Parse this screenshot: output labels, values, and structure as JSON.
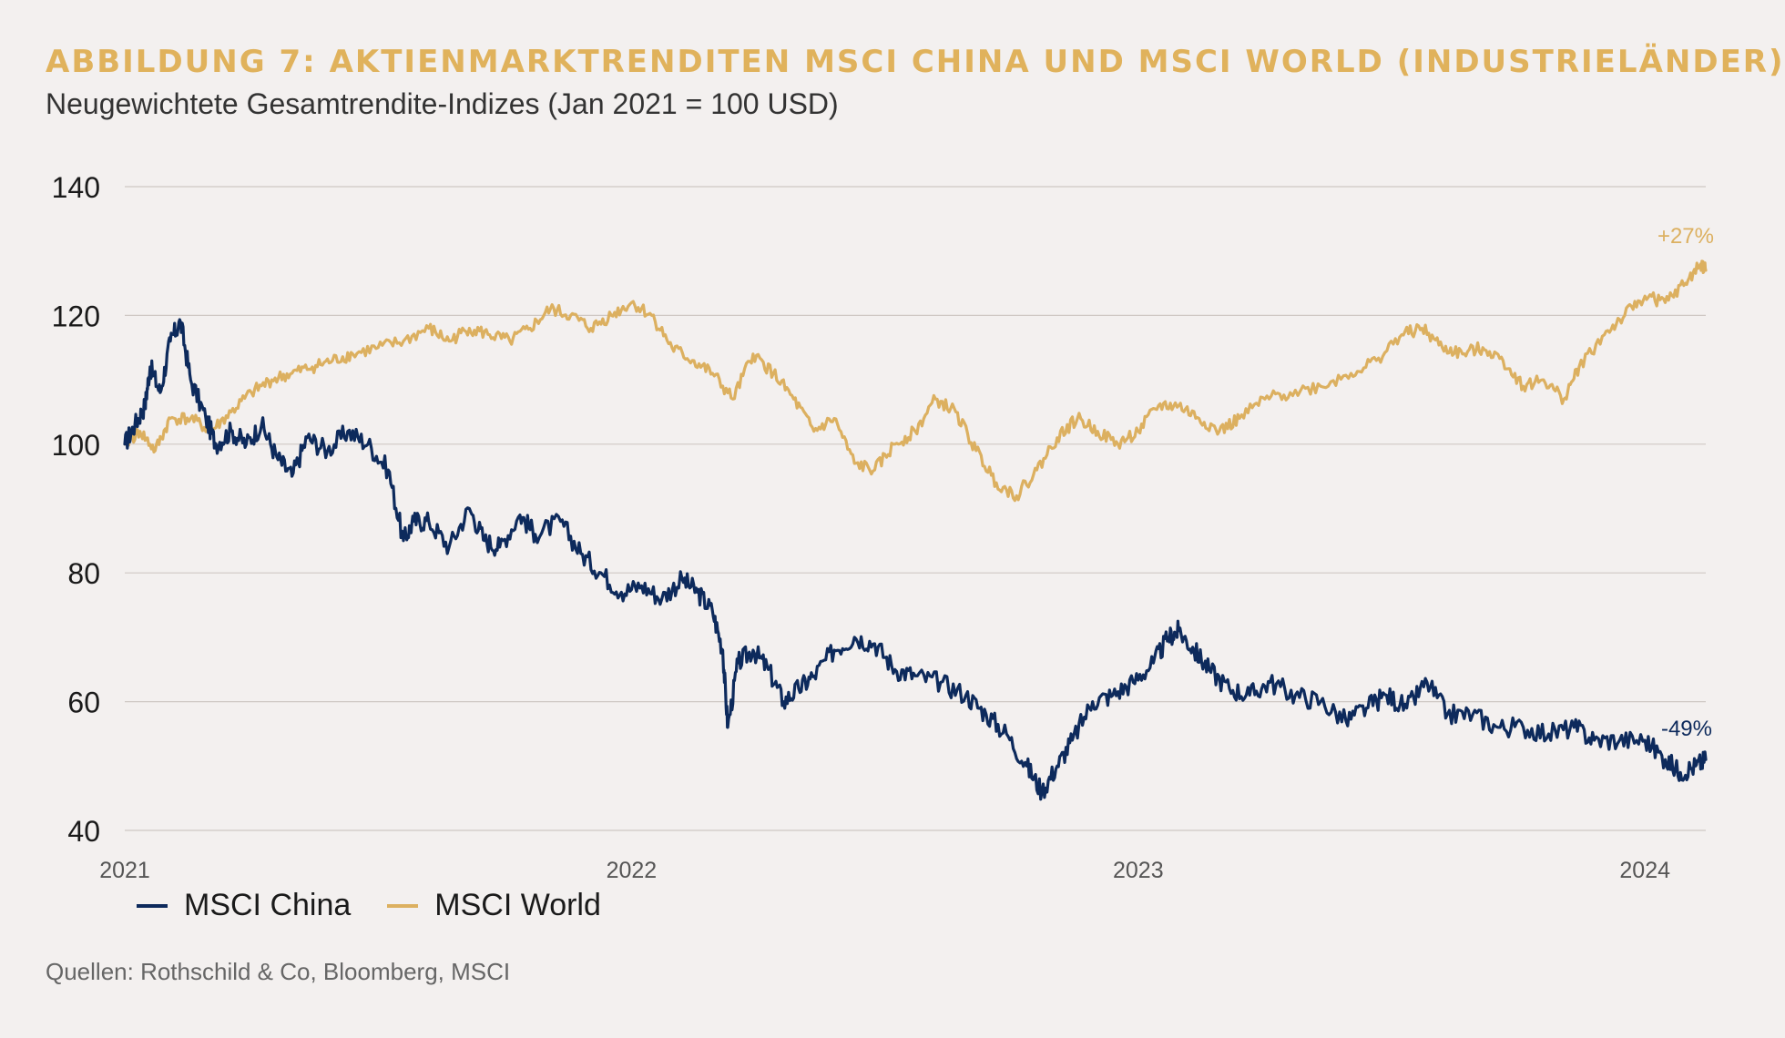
{
  "title": "ABBILDUNG 7: AKTIENMARKTRENDITEN MSCI CHINA UND MSCI WORLD (INDUSTRIELÄNDER)",
  "subtitle": "Neugewichtete Gesamtrendite-Indizes (Jan 2021 = 100 USD)",
  "source": "Quellen: Rothschild & Co, Bloomberg, MSCI",
  "colors": {
    "china": "#0d2a5c",
    "world": "#dcb060",
    "grid": "#cfc8c4",
    "background": "#f3f0ef"
  },
  "legend": {
    "china": "MSCI China",
    "world": "MSCI World"
  },
  "annotations": {
    "world_end": "+27%",
    "china_end": "-49%"
  },
  "chart_data": {
    "type": "line",
    "title": "ABBILDUNG 7: AKTIENMARKTRENDITEN MSCI CHINA UND MSCI WORLD (INDUSTRIELÄNDER)",
    "subtitle": "Neugewichtete Gesamtrendite-Indizes (Jan 2021 = 100 USD)",
    "xlabel": "",
    "ylabel": "",
    "ylim": [
      40,
      140
    ],
    "yticks": [
      40,
      60,
      80,
      100,
      120,
      140
    ],
    "xlim": [
      2021.0,
      2024.12
    ],
    "xticks": [
      {
        "value": 2021,
        "label": "2021"
      },
      {
        "value": 2022,
        "label": "2022"
      },
      {
        "value": 2023,
        "label": "2023"
      },
      {
        "value": 2024,
        "label": "2024"
      }
    ],
    "grid": "horizontal",
    "legend_position": "bottom-left",
    "series": [
      {
        "name": "MSCI China",
        "color": "#0d2a5c",
        "end_label": "-49%",
        "points": [
          [
            2021.0,
            100
          ],
          [
            2021.02,
            103
          ],
          [
            2021.04,
            106
          ],
          [
            2021.05,
            112
          ],
          [
            2021.07,
            108
          ],
          [
            2021.09,
            116
          ],
          [
            2021.11,
            119
          ],
          [
            2021.13,
            110
          ],
          [
            2021.16,
            104
          ],
          [
            2021.18,
            100
          ],
          [
            2021.21,
            102
          ],
          [
            2021.24,
            100
          ],
          [
            2021.27,
            103
          ],
          [
            2021.3,
            98
          ],
          [
            2021.33,
            95
          ],
          [
            2021.36,
            101
          ],
          [
            2021.4,
            99
          ],
          [
            2021.44,
            102
          ],
          [
            2021.48,
            100
          ],
          [
            2021.52,
            96
          ],
          [
            2021.55,
            85
          ],
          [
            2021.57,
            88
          ],
          [
            2021.6,
            88
          ],
          [
            2021.64,
            84
          ],
          [
            2021.68,
            90
          ],
          [
            2021.71,
            85
          ],
          [
            2021.74,
            84
          ],
          [
            2021.78,
            89
          ],
          [
            2021.81,
            86
          ],
          [
            2021.86,
            88
          ],
          [
            2021.9,
            83
          ],
          [
            2021.94,
            80
          ],
          [
            2021.98,
            77
          ],
          [
            2022.02,
            78
          ],
          [
            2022.06,
            76
          ],
          [
            2022.1,
            79
          ],
          [
            2022.13,
            77
          ],
          [
            2022.16,
            74
          ],
          [
            2022.18,
            68
          ],
          [
            2022.19,
            56
          ],
          [
            2022.21,
            66
          ],
          [
            2022.24,
            68
          ],
          [
            2022.27,
            65
          ],
          [
            2022.3,
            60
          ],
          [
            2022.33,
            62
          ],
          [
            2022.36,
            64
          ],
          [
            2022.4,
            68
          ],
          [
            2022.44,
            70
          ],
          [
            2022.48,
            69
          ],
          [
            2022.52,
            65
          ],
          [
            2022.56,
            64
          ],
          [
            2022.61,
            63
          ],
          [
            2022.66,
            61
          ],
          [
            2022.7,
            58
          ],
          [
            2022.74,
            55
          ],
          [
            2022.78,
            50
          ],
          [
            2022.81,
            46
          ],
          [
            2022.84,
            50
          ],
          [
            2022.87,
            54
          ],
          [
            2022.91,
            60
          ],
          [
            2022.95,
            61
          ],
          [
            2022.99,
            63
          ],
          [
            2023.03,
            66
          ],
          [
            2023.06,
            70
          ],
          [
            2023.08,
            71
          ],
          [
            2023.11,
            68
          ],
          [
            2023.14,
            65
          ],
          [
            2023.18,
            62
          ],
          [
            2023.22,
            61
          ],
          [
            2023.26,
            63
          ],
          [
            2023.31,
            61
          ],
          [
            2023.36,
            60
          ],
          [
            2023.41,
            57
          ],
          [
            2023.45,
            59
          ],
          [
            2023.49,
            61
          ],
          [
            2023.53,
            59
          ],
          [
            2023.57,
            63
          ],
          [
            2023.61,
            58
          ],
          [
            2023.66,
            58
          ],
          [
            2023.71,
            56
          ],
          [
            2023.76,
            56
          ],
          [
            2023.81,
            55
          ],
          [
            2023.86,
            56
          ],
          [
            2023.9,
            54
          ],
          [
            2023.95,
            54
          ],
          [
            2024.0,
            54
          ],
          [
            2024.04,
            51
          ],
          [
            2024.07,
            49
          ],
          [
            2024.1,
            50
          ],
          [
            2024.12,
            51
          ]
        ]
      },
      {
        "name": "MSCI World",
        "color": "#dcb060",
        "end_label": "+27%",
        "points": [
          [
            2021.0,
            100
          ],
          [
            2021.03,
            102
          ],
          [
            2021.06,
            99
          ],
          [
            2021.09,
            104
          ],
          [
            2021.13,
            104
          ],
          [
            2021.17,
            102
          ],
          [
            2021.21,
            105
          ],
          [
            2021.25,
            108
          ],
          [
            2021.29,
            110
          ],
          [
            2021.33,
            111
          ],
          [
            2021.37,
            112
          ],
          [
            2021.41,
            113
          ],
          [
            2021.45,
            114
          ],
          [
            2021.5,
            115
          ],
          [
            2021.55,
            116
          ],
          [
            2021.6,
            118
          ],
          [
            2021.64,
            116
          ],
          [
            2021.68,
            118
          ],
          [
            2021.72,
            117
          ],
          [
            2021.76,
            116
          ],
          [
            2021.8,
            118
          ],
          [
            2021.84,
            121
          ],
          [
            2021.88,
            120
          ],
          [
            2021.92,
            118
          ],
          [
            2021.96,
            120
          ],
          [
            2022.0,
            122
          ],
          [
            2022.04,
            120
          ],
          [
            2022.08,
            115
          ],
          [
            2022.12,
            113
          ],
          [
            2022.16,
            111
          ],
          [
            2022.2,
            107
          ],
          [
            2022.24,
            114
          ],
          [
            2022.28,
            111
          ],
          [
            2022.32,
            107
          ],
          [
            2022.36,
            102
          ],
          [
            2022.4,
            104
          ],
          [
            2022.44,
            97
          ],
          [
            2022.48,
            96
          ],
          [
            2022.52,
            100
          ],
          [
            2022.56,
            102
          ],
          [
            2022.6,
            107
          ],
          [
            2022.64,
            105
          ],
          [
            2022.68,
            99
          ],
          [
            2022.72,
            94
          ],
          [
            2022.76,
            92
          ],
          [
            2022.8,
            96
          ],
          [
            2022.84,
            101
          ],
          [
            2022.88,
            104
          ],
          [
            2022.92,
            102
          ],
          [
            2022.96,
            100
          ],
          [
            2023.0,
            102
          ],
          [
            2023.04,
            106
          ],
          [
            2023.08,
            106
          ],
          [
            2023.12,
            104
          ],
          [
            2023.16,
            102
          ],
          [
            2023.2,
            104
          ],
          [
            2023.25,
            107
          ],
          [
            2023.3,
            108
          ],
          [
            2023.36,
            109
          ],
          [
            2023.42,
            111
          ],
          [
            2023.47,
            113
          ],
          [
            2023.52,
            117
          ],
          [
            2023.56,
            118
          ],
          [
            2023.6,
            115
          ],
          [
            2023.64,
            114
          ],
          [
            2023.68,
            115
          ],
          [
            2023.72,
            113
          ],
          [
            2023.76,
            109
          ],
          [
            2023.8,
            110
          ],
          [
            2023.84,
            107
          ],
          [
            2023.87,
            112
          ],
          [
            2023.92,
            117
          ],
          [
            2023.96,
            120
          ],
          [
            2024.0,
            123
          ],
          [
            2024.04,
            122
          ],
          [
            2024.08,
            125
          ],
          [
            2024.11,
            128
          ],
          [
            2024.12,
            127
          ]
        ]
      }
    ]
  }
}
